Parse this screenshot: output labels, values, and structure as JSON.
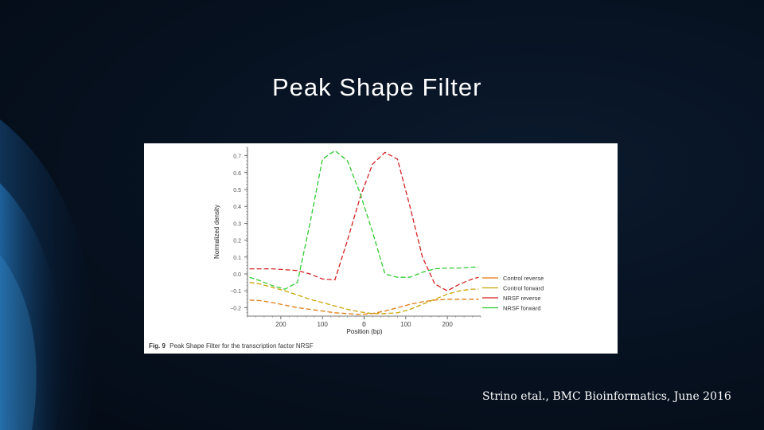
{
  "slide": {
    "title": "Peak Shape Filter",
    "citation": "Strino etal., BMC Bioinformatics, June 2016"
  },
  "figure": {
    "caption_bold": "Fig. 9",
    "caption_text": "Peak Shape Filter for the transcription factor NRSF"
  },
  "colors": {
    "background": "#06101e",
    "swoosh": "#1e6fb5",
    "control_reverse": "#e07b10",
    "control_forward": "#c9a400",
    "nrsf_reverse": "#d42020",
    "nrsf_forward": "#2ecc2e"
  },
  "chart_data": {
    "type": "line",
    "title": "",
    "xlabel": "Position (bp)",
    "ylabel": "Normalized density",
    "xlim": [
      -280,
      280
    ],
    "ylim": [
      -0.25,
      0.75
    ],
    "x_ticks": [
      200,
      100,
      0,
      100,
      200
    ],
    "x_tick_values": [
      -200,
      -100,
      0,
      100,
      200
    ],
    "y_ticks": [
      "0.7",
      "0.6",
      "0.5",
      "0.4",
      "0.3",
      "0.2",
      "0.1",
      "0.0",
      "−0.1",
      "−0.2"
    ],
    "y_tick_values": [
      0.7,
      0.6,
      0.5,
      0.4,
      0.3,
      0.2,
      0.1,
      0.0,
      -0.1,
      -0.2
    ],
    "legend_position": "bottom-right",
    "x": [
      -275,
      -250,
      -220,
      -190,
      -160,
      -130,
      -100,
      -70,
      -40,
      -10,
      20,
      50,
      80,
      110,
      140,
      170,
      200,
      230,
      260,
      275
    ],
    "series": [
      {
        "name": "Control reverse",
        "color": "#e07b10",
        "values": [
          -0.155,
          -0.158,
          -0.17,
          -0.185,
          -0.2,
          -0.21,
          -0.22,
          -0.23,
          -0.235,
          -0.24,
          -0.235,
          -0.22,
          -0.2,
          -0.18,
          -0.165,
          -0.155,
          -0.15,
          -0.15,
          -0.15,
          -0.15
        ]
      },
      {
        "name": "Control forward",
        "color": "#c9a400",
        "values": [
          -0.05,
          -0.06,
          -0.08,
          -0.1,
          -0.125,
          -0.15,
          -0.17,
          -0.19,
          -0.21,
          -0.225,
          -0.235,
          -0.235,
          -0.23,
          -0.21,
          -0.18,
          -0.15,
          -0.12,
          -0.1,
          -0.09,
          -0.09
        ]
      },
      {
        "name": "NRSF reverse",
        "color": "#d42020",
        "values": [
          0.03,
          0.03,
          0.03,
          0.025,
          0.02,
          0.0,
          -0.03,
          -0.035,
          0.2,
          0.45,
          0.65,
          0.72,
          0.68,
          0.4,
          0.1,
          -0.06,
          -0.1,
          -0.06,
          -0.03,
          -0.02
        ]
      },
      {
        "name": "NRSF forward",
        "color": "#2ecc2e",
        "values": [
          -0.02,
          -0.04,
          -0.07,
          -0.09,
          -0.05,
          0.3,
          0.68,
          0.73,
          0.67,
          0.48,
          0.25,
          0.0,
          -0.02,
          -0.02,
          0.01,
          0.03,
          0.035,
          0.035,
          0.04,
          0.04
        ]
      }
    ]
  }
}
